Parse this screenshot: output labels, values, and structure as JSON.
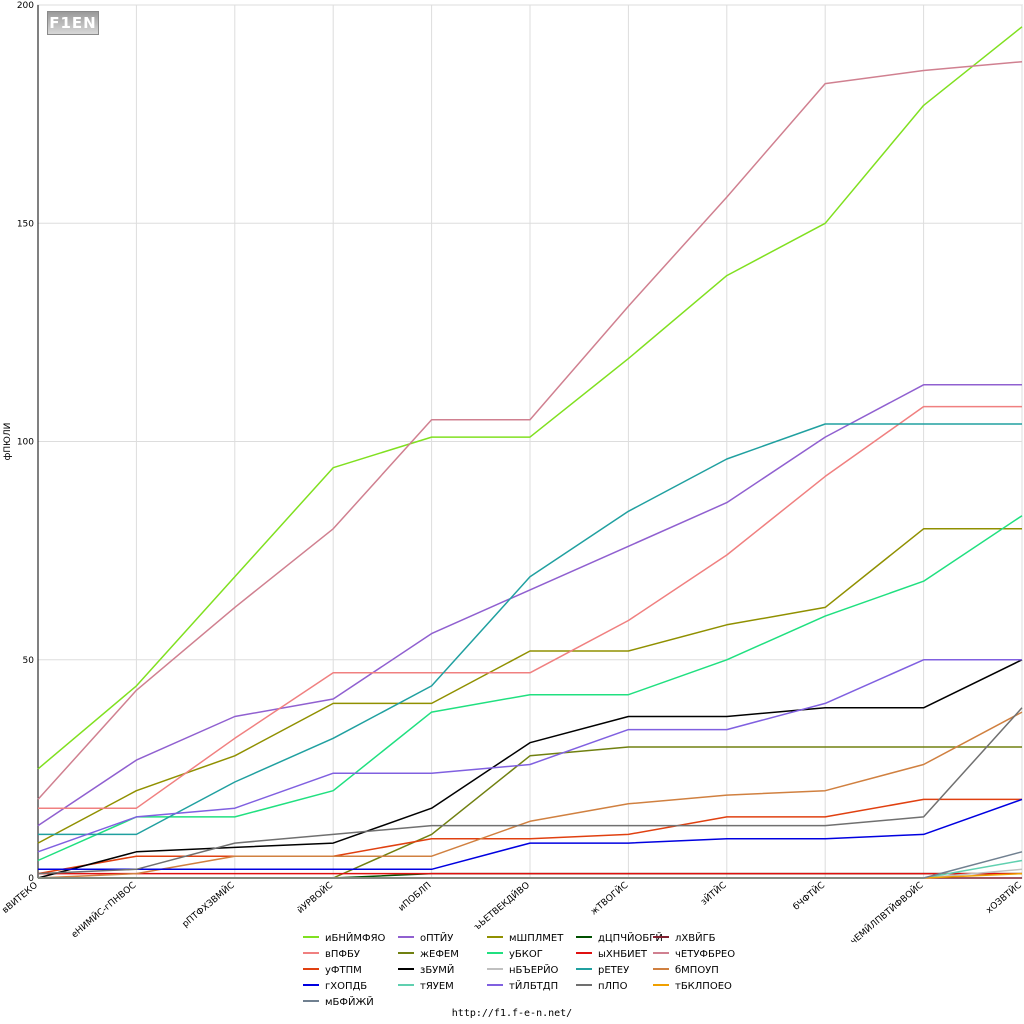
{
  "logo_text": "F1EN",
  "footer": "http://f1.f-e-n.net/",
  "chart_data": {
    "type": "line",
    "ylabel": "фПЮЛИ",
    "xlabel": "",
    "ylim": [
      0,
      200
    ],
    "yticks": [
      0,
      50,
      100,
      150,
      200
    ],
    "grid": true,
    "legend_position": "bottom",
    "categories": [
      "вВИТЕКО",
      "еНИМЙС-гПНВОС",
      "рПТФХЗВМЙС",
      "йУРВОЙС",
      "иПОБЛП",
      "ъЬЕТВЕКДЙВО",
      "жТВОГЙС",
      "зЙТЙС",
      "бЧФТЙС",
      "чЕМЙЛПВТЙФВОЙС",
      "хОЗВТЙС"
    ],
    "series": [
      {
        "name": "иБНЙМФЯО",
        "color": "#80e020",
        "values": [
          25,
          44,
          69,
          94,
          101,
          101,
          119,
          138,
          150,
          177,
          195
        ]
      },
      {
        "name": "оПТЙУ",
        "color": "#9060d0",
        "values": [
          12,
          27,
          37,
          41,
          56,
          66,
          76,
          86,
          101,
          113,
          113
        ]
      },
      {
        "name": "мШПЛМЕТ",
        "color": "#909000",
        "values": [
          8,
          20,
          28,
          40,
          40,
          52,
          52,
          58,
          62,
          80,
          80
        ]
      },
      {
        "name": "дЦПЧЙОБГЙ",
        "color": "#005000",
        "values": [
          0,
          0,
          0,
          0,
          1,
          1,
          1,
          1,
          1,
          1,
          1
        ]
      },
      {
        "name": "лХВЙГБ",
        "color": "#802030",
        "values": [
          0,
          0,
          0,
          0,
          0,
          0,
          0,
          0,
          0,
          0,
          0
        ]
      },
      {
        "name": "вПФБУ",
        "color": "#f08080",
        "values": [
          16,
          16,
          32,
          47,
          47,
          47,
          59,
          74,
          92,
          108,
          108
        ]
      },
      {
        "name": "жЕФЕМ",
        "color": "#708010",
        "values": [
          0,
          0,
          0,
          0,
          10,
          28,
          30,
          30,
          30,
          30,
          30
        ]
      },
      {
        "name": "уБКОГ",
        "color": "#20e080",
        "values": [
          4,
          14,
          14,
          20,
          38,
          42,
          42,
          50,
          60,
          68,
          83
        ]
      },
      {
        "name": "ыХНБИЕТ",
        "color": "#e01010",
        "values": [
          1,
          1,
          1,
          1,
          1,
          1,
          1,
          1,
          1,
          1,
          1
        ]
      },
      {
        "name": "чЕТУФБРЕО",
        "color": "#d08090",
        "values": [
          18,
          43,
          62,
          80,
          105,
          105,
          131,
          156,
          182,
          185,
          187
        ]
      },
      {
        "name": "уФТПМ",
        "color": "#e04010",
        "values": [
          1,
          5,
          5,
          5,
          9,
          9,
          10,
          14,
          14,
          18,
          18
        ]
      },
      {
        "name": "зБУМЙ",
        "color": "#000000",
        "values": [
          0,
          6,
          7,
          8,
          16,
          31,
          37,
          37,
          39,
          39,
          50
        ]
      },
      {
        "name": "нБЪЕРЙО",
        "color": "#c0c0c0",
        "values": [
          0,
          0,
          0,
          0,
          0,
          0,
          0,
          0,
          0,
          0,
          2
        ]
      },
      {
        "name": "рЕТЕУ",
        "color": "#20a0a0",
        "values": [
          10,
          10,
          22,
          32,
          44,
          69,
          84,
          96,
          104,
          104,
          104
        ]
      },
      {
        "name": "бМПОУП",
        "color": "#d08040",
        "values": [
          0,
          1,
          5,
          5,
          5,
          13,
          17,
          19,
          20,
          26,
          38
        ]
      },
      {
        "name": "гХОПДБ",
        "color": "#0000e0",
        "values": [
          2,
          2,
          2,
          2,
          2,
          8,
          8,
          9,
          9,
          10,
          18
        ]
      },
      {
        "name": "тЯУЕМ",
        "color": "#60d0b0",
        "values": [
          0,
          0,
          0,
          0,
          0,
          0,
          0,
          0,
          0,
          0,
          4
        ]
      },
      {
        "name": "тЙЛБТДП",
        "color": "#8060e0",
        "values": [
          6,
          14,
          16,
          24,
          24,
          26,
          34,
          34,
          40,
          50,
          50
        ]
      },
      {
        "name": "пЛПО",
        "color": "#707070",
        "values": [
          1,
          2,
          8,
          10,
          12,
          12,
          12,
          12,
          12,
          14,
          39
        ]
      },
      {
        "name": "тБКЛПОЕО",
        "color": "#f0a000",
        "values": [
          0,
          0,
          0,
          0,
          0,
          0,
          0,
          0,
          0,
          0,
          1
        ]
      },
      {
        "name": "мБФЙЖЙ",
        "color": "#708090",
        "values": [
          0,
          0,
          0,
          0,
          0,
          0,
          0,
          0,
          0,
          0,
          6
        ]
      }
    ]
  }
}
